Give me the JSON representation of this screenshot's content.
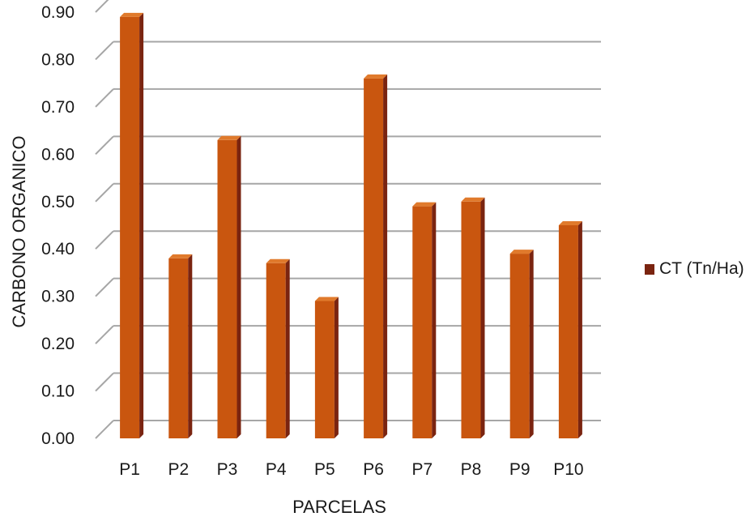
{
  "chart_data": {
    "type": "bar",
    "categories": [
      "P1",
      "P2",
      "P3",
      "P4",
      "P5",
      "P6",
      "P7",
      "P8",
      "P9",
      "P10"
    ],
    "series": [
      {
        "name": "CT (Tn/Ha)",
        "values": [
          0.89,
          0.38,
          0.63,
          0.37,
          0.29,
          0.76,
          0.49,
          0.5,
          0.39,
          0.45
        ]
      }
    ],
    "xlabel": "PARCELAS",
    "ylabel": "CARBONO ORGANICO",
    "ylim": [
      0,
      0.9
    ],
    "yticks": [
      "0.00",
      "0.10",
      "0.20",
      "0.30",
      "0.40",
      "0.50",
      "0.60",
      "0.70",
      "0.80",
      "0.90"
    ],
    "grid": true,
    "legend_position": "right",
    "colors": {
      "bar_front": "#c9560f",
      "bar_side": "#7a2410",
      "bar_top": "#e07a2c",
      "grid": "#a6a6a6"
    }
  }
}
